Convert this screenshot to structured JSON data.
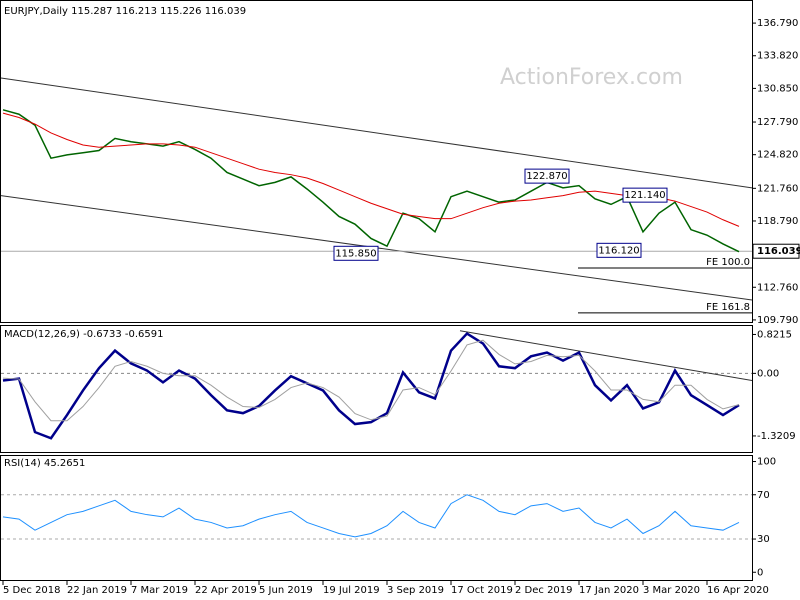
{
  "watermark": "ActionForex.com",
  "chart_data": [
    {
      "type": "line",
      "title": "EURJPY,Daily 115.287 116.213 115.226 116.039",
      "categories": [
        "5 Dec 2018",
        null,
        null,
        null,
        "22 Jan 2019",
        null,
        null,
        null,
        "7 Mar 2019",
        null,
        null,
        null,
        "22 Apr 2019",
        null,
        null,
        null,
        "5 Jun 2019",
        null,
        null,
        null,
        "19 Jul 2019",
        null,
        null,
        null,
        "3 Sep 2019",
        null,
        null,
        null,
        "17 Oct 2019",
        null,
        null,
        null,
        "2 Dec 2019",
        null,
        null,
        null,
        "17 Jan 2020",
        null,
        null,
        null,
        "3 Mar 2020",
        null,
        null,
        null,
        "16 Apr 2020",
        null,
        null
      ],
      "series": [
        {
          "color": "#006400",
          "values": [
            128.9,
            128.5,
            127.5,
            124.5,
            124.8,
            125.0,
            125.2,
            126.3,
            126.0,
            125.8,
            125.6,
            126.0,
            125.3,
            124.5,
            123.2,
            122.6,
            122.0,
            122.3,
            122.8,
            121.7,
            120.5,
            119.2,
            118.5,
            117.2,
            116.5,
            119.5,
            119.0,
            117.8,
            121.0,
            121.5,
            121.0,
            120.5,
            120.7,
            121.5,
            122.3,
            121.8,
            122.0,
            120.8,
            120.3,
            121.0,
            117.8,
            119.5,
            120.5,
            118.0,
            117.5,
            116.7,
            116.0
          ]
        },
        {
          "color": "#e00000",
          "values": [
            128.6,
            128.2,
            127.6,
            126.8,
            126.2,
            125.7,
            125.5,
            125.6,
            125.7,
            125.8,
            125.8,
            125.7,
            125.5,
            125.0,
            124.5,
            124.0,
            123.5,
            123.2,
            123.0,
            122.7,
            122.2,
            121.6,
            121.0,
            120.4,
            119.9,
            119.4,
            119.2,
            119.0,
            119.0,
            119.5,
            120.0,
            120.4,
            120.6,
            120.7,
            120.9,
            121.1,
            121.4,
            121.5,
            121.3,
            121.1,
            121.0,
            120.9,
            120.6,
            120.1,
            119.6,
            118.9,
            118.3
          ]
        }
      ],
      "ylim": [
        109.6,
        138.8
      ],
      "yticks": [
        {
          "value": 136.79,
          "label": "136.790"
        },
        {
          "value": 133.82,
          "label": "133.820"
        },
        {
          "value": 130.85,
          "label": "130.850"
        },
        {
          "value": 127.79,
          "label": "127.790"
        },
        {
          "value": 124.82,
          "label": "124.820"
        },
        {
          "value": 121.76,
          "label": "121.760"
        },
        {
          "value": 118.79,
          "label": "118.790"
        },
        {
          "value": 112.76,
          "label": "112.760"
        },
        {
          "value": 109.79,
          "label": "109.790"
        }
      ],
      "last_price": 116.039,
      "annotations": [
        {
          "value": 122.87,
          "label": "122.870"
        },
        {
          "value": 121.14,
          "label": "121.140"
        },
        {
          "value": 116.12,
          "label": "116.120"
        },
        {
          "value": 115.85,
          "label": "115.850"
        }
      ],
      "levels": [
        {
          "value": 114.51,
          "label": "FE 100.0"
        },
        {
          "value": 110.43,
          "label": "FE 161.8"
        }
      ],
      "trend_lines": [
        [
          131.8,
          121.8
        ],
        [
          121.1,
          111.6
        ]
      ]
    },
    {
      "type": "line",
      "title": "MACD(12,26,9) -0.6733 -0.6591",
      "series": [
        {
          "color": "#00008b",
          "values": [
            -0.15,
            -0.11,
            -1.24,
            -1.37,
            -0.88,
            -0.36,
            0.11,
            0.48,
            0.21,
            0.06,
            -0.19,
            0.06,
            -0.11,
            -0.46,
            -0.78,
            -0.84,
            -0.69,
            -0.36,
            -0.06,
            -0.21,
            -0.36,
            -0.78,
            -1.07,
            -1.03,
            -0.84,
            0.02,
            -0.4,
            -0.53,
            0.48,
            0.84,
            0.63,
            0.15,
            0.11,
            0.36,
            0.44,
            0.27,
            0.44,
            -0.25,
            -0.57,
            -0.25,
            -0.74,
            -0.61,
            0.06,
            -0.46,
            -0.67,
            -0.88,
            -0.67
          ]
        },
        {
          "color": "#a0a0a0",
          "values": [
            -0.1,
            -0.12,
            -0.6,
            -1.0,
            -1.0,
            -0.7,
            -0.3,
            0.15,
            0.25,
            0.15,
            0.0,
            -0.05,
            -0.05,
            -0.25,
            -0.5,
            -0.7,
            -0.72,
            -0.55,
            -0.3,
            -0.2,
            -0.3,
            -0.5,
            -0.85,
            -0.98,
            -0.9,
            -0.35,
            -0.3,
            -0.45,
            0.05,
            0.6,
            0.7,
            0.4,
            0.2,
            0.25,
            0.38,
            0.35,
            0.38,
            0.05,
            -0.35,
            -0.35,
            -0.55,
            -0.6,
            -0.25,
            -0.25,
            -0.55,
            -0.75,
            -0.66
          ]
        }
      ],
      "ylim": [
        -1.66,
        1.0
      ],
      "yticks": [
        0.8215,
        {
          "value": 0,
          "label": "0.00"
        },
        -1.3209
      ],
      "trend_line": [
        0.9,
        -0.15
      ]
    },
    {
      "type": "line",
      "title": "RSI(14) 45.2651",
      "series": [
        {
          "color": "#1e90ff",
          "values": [
            50,
            48,
            38,
            45,
            52,
            55,
            60,
            65,
            55,
            52,
            50,
            58,
            48,
            45,
            40,
            42,
            48,
            52,
            55,
            45,
            40,
            35,
            32,
            35,
            42,
            55,
            45,
            40,
            62,
            70,
            65,
            55,
            52,
            60,
            62,
            55,
            58,
            45,
            40,
            48,
            35,
            42,
            55,
            42,
            40,
            38,
            45
          ]
        }
      ],
      "ylim": [
        -7,
        105
      ],
      "yticks": [
        100,
        70,
        30,
        0
      ]
    }
  ]
}
